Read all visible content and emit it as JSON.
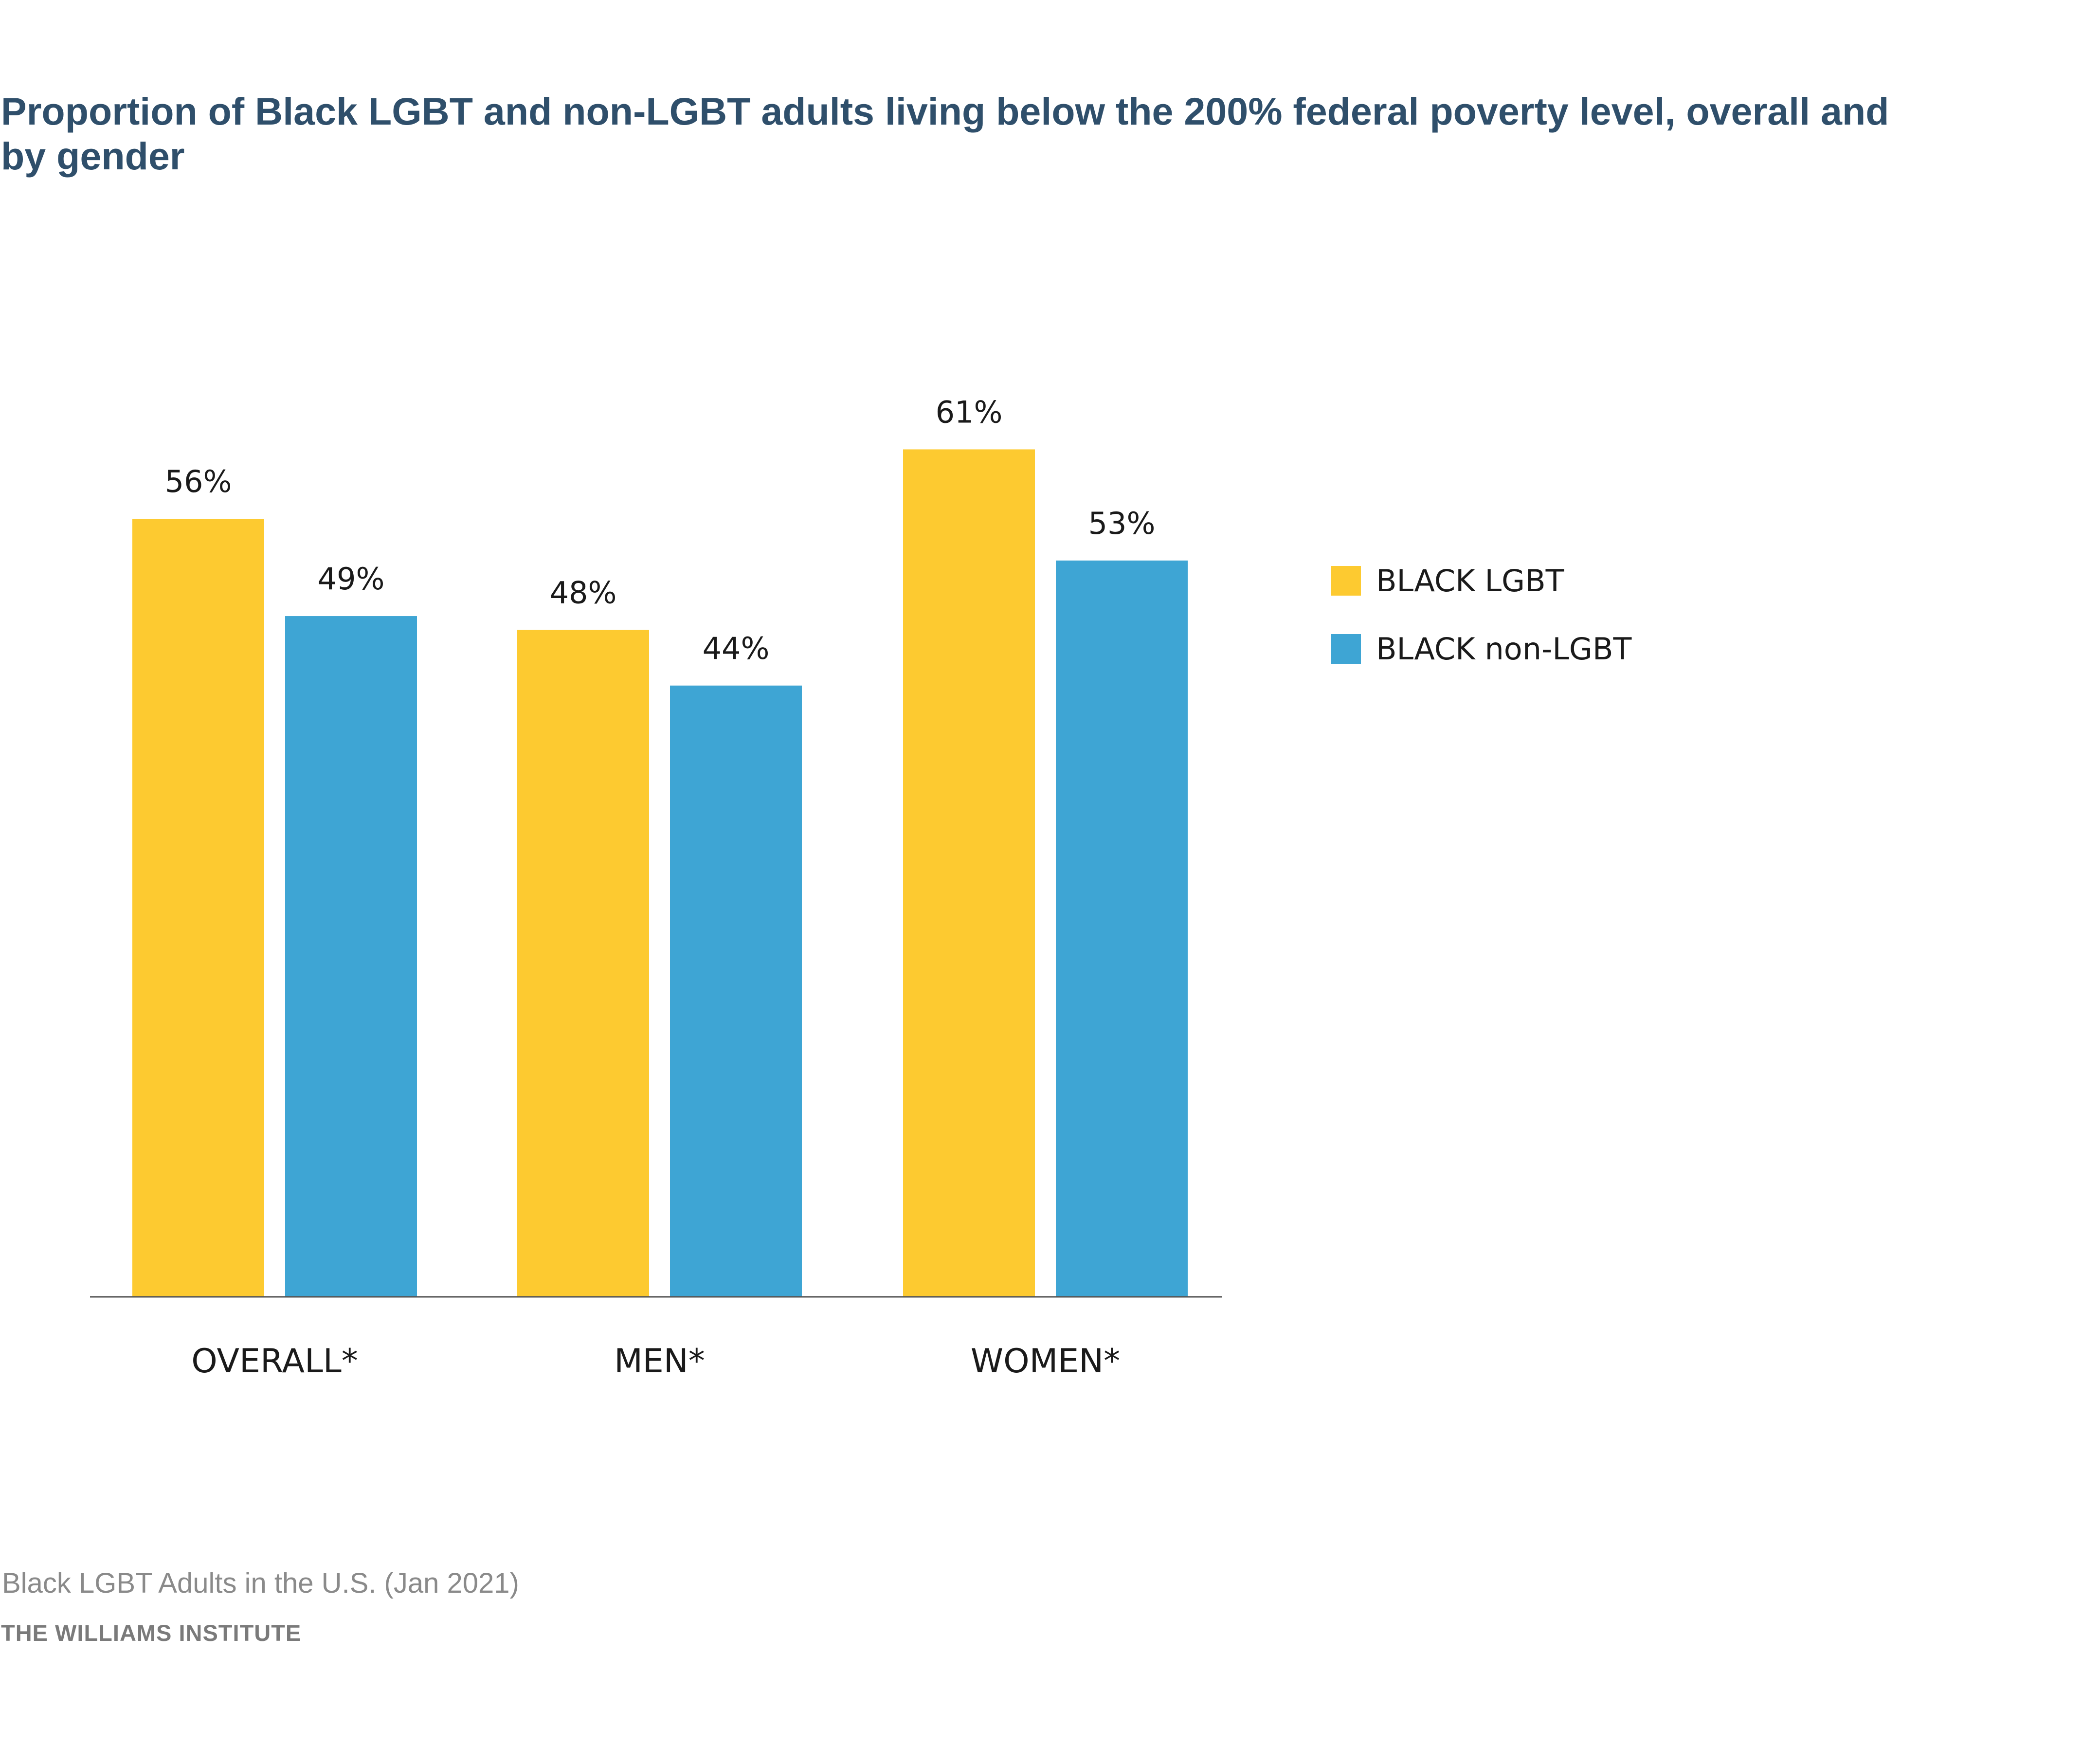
{
  "chart_data": {
    "type": "bar",
    "title": "Proportion of Black LGBT and non-LGBT adults living below the 200% federal poverty level, overall and by gender",
    "categories": [
      "OVERALL*",
      "MEN*",
      "WOMEN*"
    ],
    "series": [
      {
        "name": "BLACK LGBT",
        "color": "#fdca30",
        "values": [
          56,
          48,
          61
        ],
        "labels": [
          "56%",
          "48%",
          "61%"
        ]
      },
      {
        "name": "BLACK non-LGBT",
        "color": "#3ea5d4",
        "values": [
          49,
          44,
          53
        ],
        "labels": [
          "49%",
          "44%",
          "53%"
        ]
      }
    ],
    "ylim": [
      0,
      100
    ],
    "grid": false,
    "legend_position": "right"
  },
  "footer": {
    "source": "Black LGBT Adults in the U.S. (Jan 2021)",
    "organization": "THE WILLIAMS INSTITUTE"
  },
  "colors": {
    "title": "#2f4f6b",
    "axis": "#555555",
    "label": "#1a1a1a"
  }
}
